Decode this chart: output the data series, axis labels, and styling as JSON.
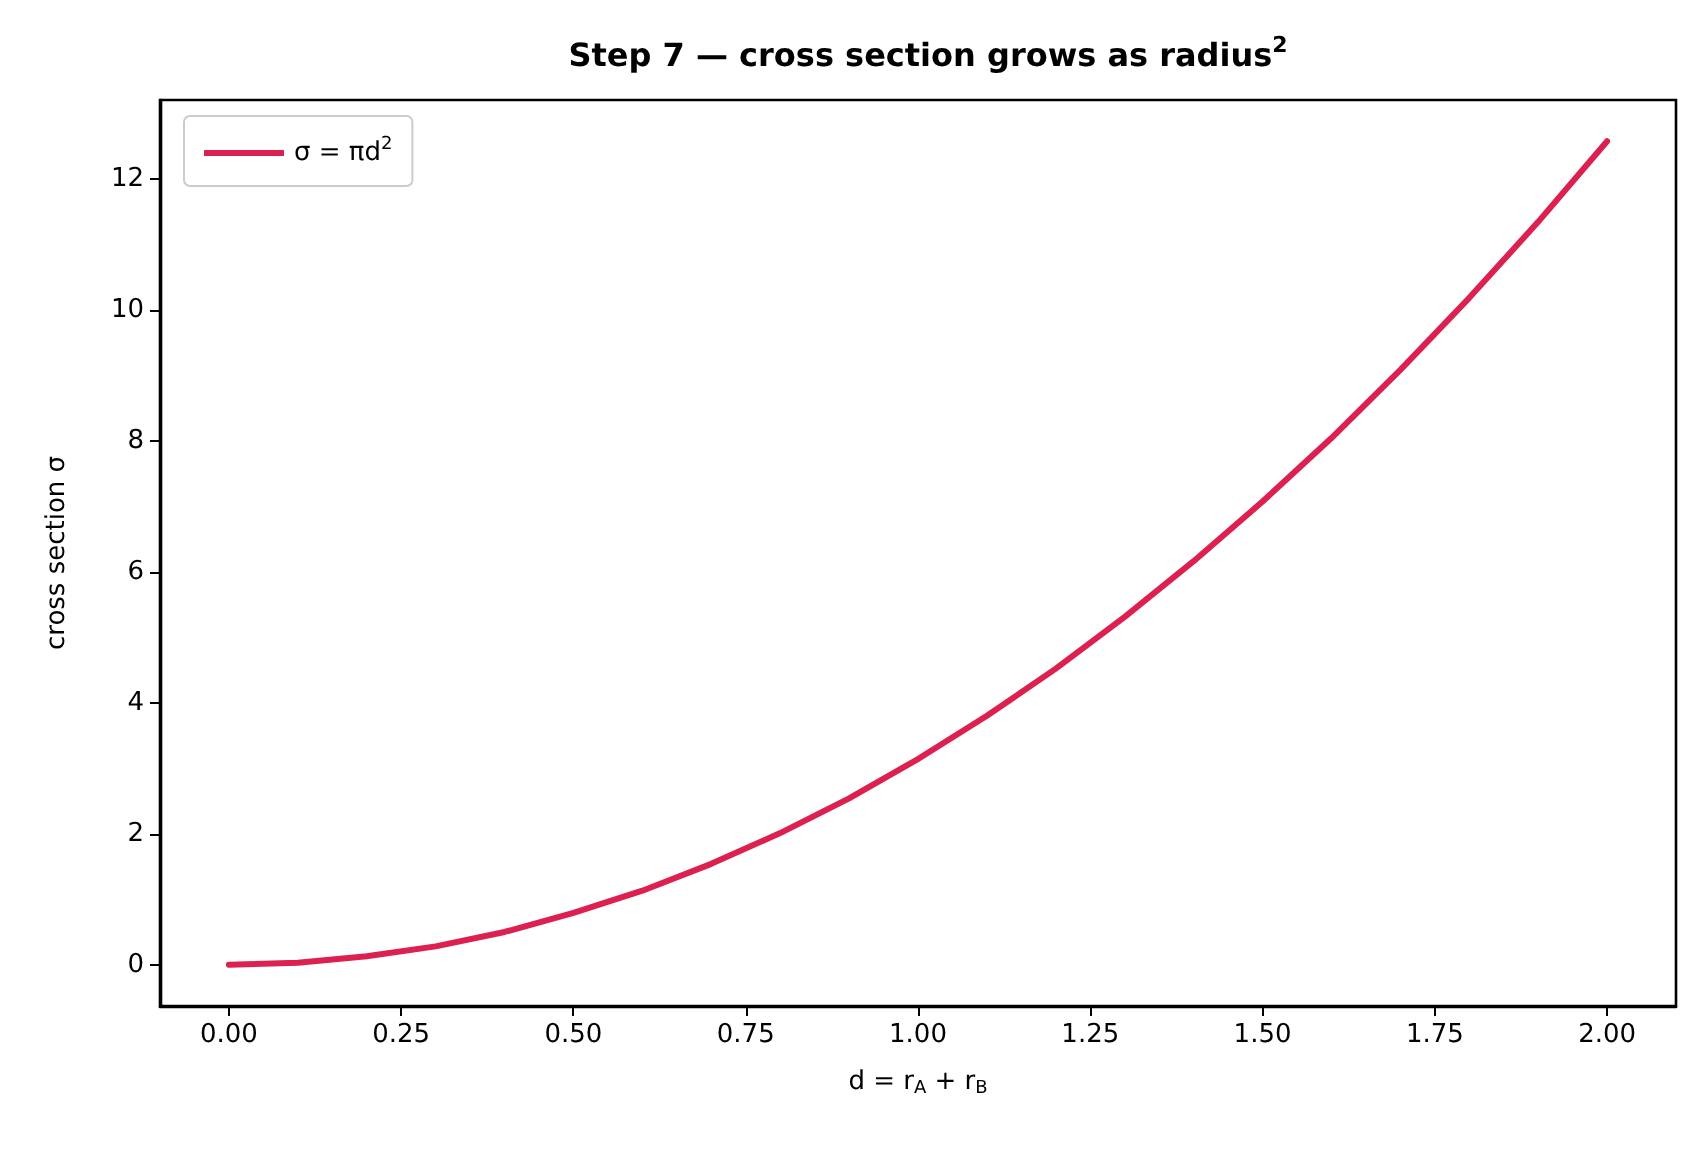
{
  "chart_data": {
    "type": "line",
    "title": "Step 7 — cross section grows as radius$^{2}$",
    "xlabel": "d = r$_{A}$ + r$_{B}$",
    "ylabel": "cross section σ",
    "x": [
      0,
      0.1,
      0.2,
      0.3,
      0.4,
      0.5,
      0.6,
      0.7,
      0.8,
      0.9,
      1.0,
      1.1,
      1.2,
      1.3,
      1.4,
      1.5,
      1.6,
      1.7,
      1.8,
      1.9,
      2.0
    ],
    "series": [
      {
        "name": "σ = πd$^{2}$",
        "color": "#dc2050",
        "values": [
          0,
          0.03,
          0.13,
          0.28,
          0.5,
          0.79,
          1.13,
          1.54,
          2.01,
          2.54,
          3.14,
          3.8,
          4.52,
          5.31,
          6.16,
          7.07,
          8.04,
          9.08,
          10.18,
          11.34,
          12.57
        ]
      }
    ],
    "xlim": [
      -0.1,
      2.1
    ],
    "ylim": [
      -0.63,
      13.2
    ],
    "xticks": [
      {
        "value": 0,
        "label": "0.00"
      },
      {
        "value": 0.25,
        "label": "0.25"
      },
      {
        "value": 0.5,
        "label": "0.50"
      },
      {
        "value": 0.75,
        "label": "0.75"
      },
      {
        "value": 1,
        "label": "1.00"
      },
      {
        "value": 1.25,
        "label": "1.25"
      },
      {
        "value": 1.5,
        "label": "1.50"
      },
      {
        "value": 1.75,
        "label": "1.75"
      },
      {
        "value": 2,
        "label": "2.00"
      }
    ],
    "yticks": [
      0,
      2,
      4,
      6,
      8,
      10,
      12
    ],
    "grid": false,
    "legend": "top left",
    "marker": "none",
    "line_style": "solid"
  }
}
